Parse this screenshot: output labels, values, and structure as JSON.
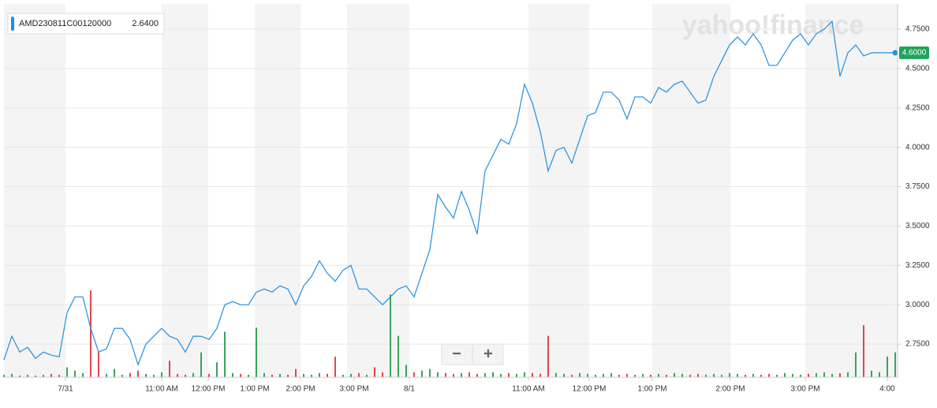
{
  "chart_data": {
    "type": "line",
    "legend_title": "AMD230811C00120000",
    "legend_value": "2.6400",
    "last_value_label": "4.6000",
    "watermark": "yahoo!finance",
    "controls": [
      "−",
      "+"
    ],
    "series": [
      {
        "name": "AMD230811C00120000",
        "color": "#1f8fe0",
        "values": [
          2.65,
          2.8,
          2.7,
          2.73,
          2.66,
          2.7,
          2.68,
          2.67,
          2.95,
          3.05,
          3.05,
          2.85,
          2.7,
          2.72,
          2.85,
          2.85,
          2.78,
          2.62,
          2.75,
          2.8,
          2.85,
          2.8,
          2.78,
          2.7,
          2.8,
          2.8,
          2.78,
          2.85,
          3.0,
          3.02,
          3.0,
          3.0,
          3.08,
          3.1,
          3.08,
          3.12,
          3.1,
          3.0,
          3.12,
          3.18,
          3.28,
          3.2,
          3.15,
          3.22,
          3.25,
          3.1,
          3.1,
          3.05,
          3.0,
          3.05,
          3.1,
          3.12,
          3.05,
          3.2,
          3.35,
          3.7,
          3.62,
          3.55,
          3.72,
          3.6,
          3.45,
          3.85,
          3.95,
          4.05,
          4.02,
          4.15,
          4.4,
          4.28,
          4.1,
          3.85,
          3.98,
          4.0,
          3.9,
          4.05,
          4.2,
          4.22,
          4.35,
          4.35,
          4.3,
          4.18,
          4.32,
          4.32,
          4.28,
          4.38,
          4.35,
          4.4,
          4.42,
          4.35,
          4.28,
          4.3,
          4.45,
          4.55,
          4.65,
          4.7,
          4.65,
          4.72,
          4.65,
          4.52,
          4.52,
          4.6,
          4.68,
          4.72,
          4.65,
          4.72,
          4.75,
          4.8,
          4.45,
          4.6,
          4.65,
          4.58,
          4.6,
          4.6,
          4.6,
          4.6
        ]
      }
    ],
    "volume": [
      3,
      4,
      2,
      3,
      2,
      3,
      4,
      3,
      12,
      8,
      5,
      105,
      30,
      4,
      10,
      3,
      5,
      8,
      4,
      3,
      6,
      20,
      4,
      3,
      5,
      30,
      4,
      18,
      55,
      5,
      4,
      3,
      60,
      5,
      3,
      4,
      3,
      10,
      4,
      3,
      5,
      4,
      25,
      3,
      4,
      5,
      3,
      12,
      6,
      100,
      50,
      15,
      6,
      8,
      10,
      6,
      5,
      4,
      5,
      6,
      4,
      5,
      6,
      4,
      5,
      4,
      6,
      5,
      4,
      50,
      5,
      4,
      3,
      5,
      4,
      3,
      4,
      5,
      3,
      4,
      3,
      4,
      3,
      4,
      3,
      5,
      4,
      3,
      4,
      3,
      4,
      3,
      5,
      4,
      3,
      4,
      3,
      4,
      3,
      5,
      4,
      3,
      4,
      5,
      6,
      4,
      5,
      6,
      30,
      63,
      8,
      6,
      25,
      30
    ],
    "up_color": "#3aa35b",
    "down_color": "#e0464b",
    "xlim": [
      0,
      113.3
    ],
    "xticks": [
      {
        "value": 7.8,
        "label": "7/31"
      },
      {
        "value": 20,
        "label": "11:00 AM"
      },
      {
        "value": 25.9,
        "label": "12:00 PM"
      },
      {
        "value": 31.8,
        "label": "1:00 PM"
      },
      {
        "value": 37.6,
        "label": "2:00 PM"
      },
      {
        "value": 44.4,
        "label": "3:00 PM"
      },
      {
        "value": 51.4,
        "label": "8/1"
      },
      {
        "value": 66.5,
        "label": "11:00 AM"
      },
      {
        "value": 74.2,
        "label": "12:00 PM"
      },
      {
        "value": 82.2,
        "label": "1:00 PM"
      },
      {
        "value": 92.1,
        "label": "2:00 PM"
      },
      {
        "value": 101.6,
        "label": "3:00 PM"
      },
      {
        "value": 112,
        "label": "4:00"
      }
    ],
    "ylim": [
      2.54,
      4.91
    ],
    "yticks": [
      {
        "value": 2.75,
        "label": "2.7500"
      },
      {
        "value": 3,
        "label": "3.0000"
      },
      {
        "value": 3.25,
        "label": "3.2500"
      },
      {
        "value": 3.5,
        "label": "3.5000"
      },
      {
        "value": 3.75,
        "label": "3.7500"
      },
      {
        "value": 4,
        "label": "4.0000"
      },
      {
        "value": 4.25,
        "label": "4.2500"
      },
      {
        "value": 4.5,
        "label": "4.5000"
      },
      {
        "value": 4.75,
        "label": "4.7500"
      }
    ],
    "grid": true
  }
}
